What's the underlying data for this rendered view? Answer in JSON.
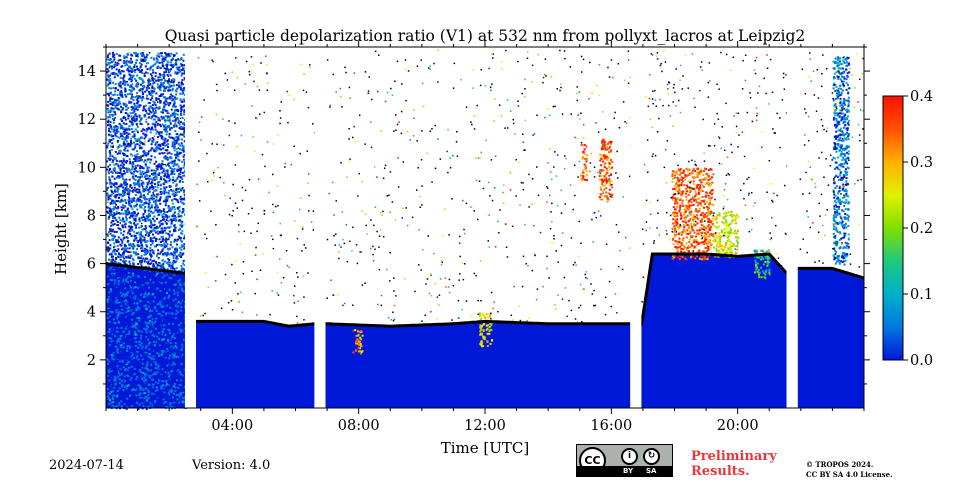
{
  "chart_data": {
    "type": "heatmap",
    "title": "Quasi particle depolarization ratio (V1) at 532 nm from pollyxt_lacros at Leipzig2",
    "xlabel": "Time [UTC]",
    "ylabel": "Height [km]",
    "xlim_hours": [
      0,
      24
    ],
    "ylim_km": [
      0,
      15
    ],
    "x_ticks": [
      {
        "value": 4,
        "label": "04:00"
      },
      {
        "value": 8,
        "label": "08:00"
      },
      {
        "value": 12,
        "label": "12:00"
      },
      {
        "value": 16,
        "label": "16:00"
      },
      {
        "value": 20,
        "label": "20:00"
      }
    ],
    "y_ticks": [
      {
        "value": 2,
        "label": "2"
      },
      {
        "value": 4,
        "label": "4"
      },
      {
        "value": 6,
        "label": "6"
      },
      {
        "value": 8,
        "label": "8"
      },
      {
        "value": 10,
        "label": "10"
      },
      {
        "value": 12,
        "label": "12"
      },
      {
        "value": 14,
        "label": "14"
      }
    ],
    "colorbar": {
      "range": [
        0.0,
        0.4
      ],
      "ticks": [
        {
          "value": 0.0,
          "label": "0.0"
        },
        {
          "value": 0.1,
          "label": "0.1"
        },
        {
          "value": 0.2,
          "label": "0.2"
        },
        {
          "value": 0.3,
          "label": "0.3"
        },
        {
          "value": 0.4,
          "label": "0.4"
        }
      ],
      "colormap": [
        "#0018d8",
        "#0078e0",
        "#00b0c8",
        "#20c880",
        "#80e000",
        "#e0f000",
        "#ffb000",
        "#ff5000",
        "#ff1000"
      ]
    },
    "data_gaps_hours": [
      [
        2.5,
        2.85
      ],
      [
        6.6,
        6.95
      ],
      [
        16.6,
        16.95
      ],
      [
        21.55,
        21.9
      ]
    ],
    "boundary_layer_top_km": [
      {
        "t": 0.0,
        "h": 6.0
      },
      {
        "t": 2.5,
        "h": 5.6
      },
      {
        "t": 2.85,
        "h": 3.6
      },
      {
        "t": 5.0,
        "h": 3.6
      },
      {
        "t": 5.8,
        "h": 3.4
      },
      {
        "t": 6.6,
        "h": 3.5
      },
      {
        "t": 6.95,
        "h": 3.5
      },
      {
        "t": 9.0,
        "h": 3.4
      },
      {
        "t": 11.0,
        "h": 3.5
      },
      {
        "t": 12.0,
        "h": 3.6
      },
      {
        "t": 14.0,
        "h": 3.5
      },
      {
        "t": 16.6,
        "h": 3.5
      },
      {
        "t": 16.95,
        "h": 3.4
      },
      {
        "t": 17.3,
        "h": 6.4
      },
      {
        "t": 19.0,
        "h": 6.4
      },
      {
        "t": 20.0,
        "h": 6.3
      },
      {
        "t": 21.0,
        "h": 6.4
      },
      {
        "t": 21.55,
        "h": 5.6
      },
      {
        "t": 21.9,
        "h": 5.8
      },
      {
        "t": 23.0,
        "h": 5.8
      },
      {
        "t": 24.0,
        "h": 5.4
      }
    ],
    "features": [
      {
        "t0": 0.0,
        "t1": 2.5,
        "h0": 0.0,
        "h1": 14.8,
        "value": 0.02
      },
      {
        "t0": 7.8,
        "t1": 8.1,
        "h0": 2.3,
        "h1": 3.3,
        "value": 0.3
      },
      {
        "t0": 11.8,
        "t1": 12.2,
        "h0": 2.6,
        "h1": 4.0,
        "value": 0.25
      },
      {
        "t0": 15.0,
        "t1": 15.2,
        "h0": 9.5,
        "h1": 11.0,
        "value": 0.35
      },
      {
        "t0": 15.6,
        "t1": 16.0,
        "h0": 8.6,
        "h1": 11.2,
        "value": 0.35
      },
      {
        "t0": 17.9,
        "t1": 19.2,
        "h0": 6.2,
        "h1": 10.0,
        "value": 0.35
      },
      {
        "t0": 19.2,
        "t1": 20.0,
        "h0": 6.3,
        "h1": 8.2,
        "value": 0.25
      },
      {
        "t0": 20.5,
        "t1": 21.0,
        "h0": 5.4,
        "h1": 6.6,
        "value": 0.15
      },
      {
        "t0": 23.0,
        "t1": 23.5,
        "h0": 6.0,
        "h1": 14.7,
        "value": 0.05
      }
    ]
  },
  "footer": {
    "date": "2024-07-14",
    "version": "Version: 4.0",
    "license_badge": {
      "cc": "CC",
      "by": "BY",
      "sa": "SA"
    },
    "preliminary": [
      "Preliminary",
      "Results."
    ],
    "copyright": [
      "© TROPOS 2024.",
      "CC BY SA 4.0 License."
    ]
  }
}
